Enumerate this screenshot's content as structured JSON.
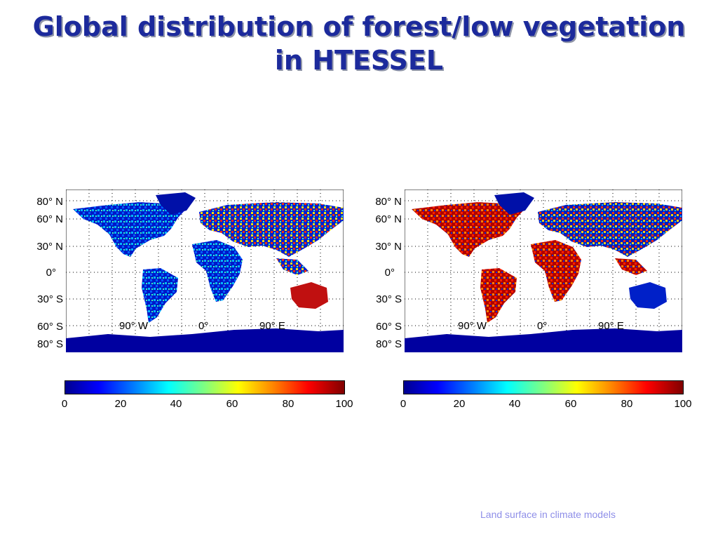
{
  "slide": {
    "title_line1": "Global distribution of forest/low vegetation",
    "title_line2": "in HTESSEL",
    "footer": "Land surface in climate models"
  },
  "maps": [
    {
      "lat_labels": [
        "80° N",
        "60° N",
        "30° N",
        "0°",
        "30° S",
        "60° S",
        "80° S"
      ],
      "lon_labels": [
        "90° W",
        "0°",
        "90° E"
      ],
      "colorbar": {
        "min": 0,
        "max": 100,
        "ticks": [
          "0",
          "20",
          "40",
          "60",
          "80",
          "100"
        ]
      }
    },
    {
      "lat_labels": [
        "80° N",
        "60° N",
        "30° N",
        "0°",
        "30° S",
        "60° S",
        "80° S"
      ],
      "lon_labels": [
        "90° W",
        "0°",
        "90° E"
      ],
      "colorbar": {
        "min": 0,
        "max": 100,
        "ticks": [
          "0",
          "20",
          "40",
          "60",
          "80",
          "100"
        ]
      }
    }
  ],
  "colors": {
    "title": "#1c2a9c",
    "title_shadow": "#8f95a8",
    "footer": "#8e8ee8",
    "ocean": "#ffffff",
    "low": "#00008f",
    "high": "#800000"
  }
}
